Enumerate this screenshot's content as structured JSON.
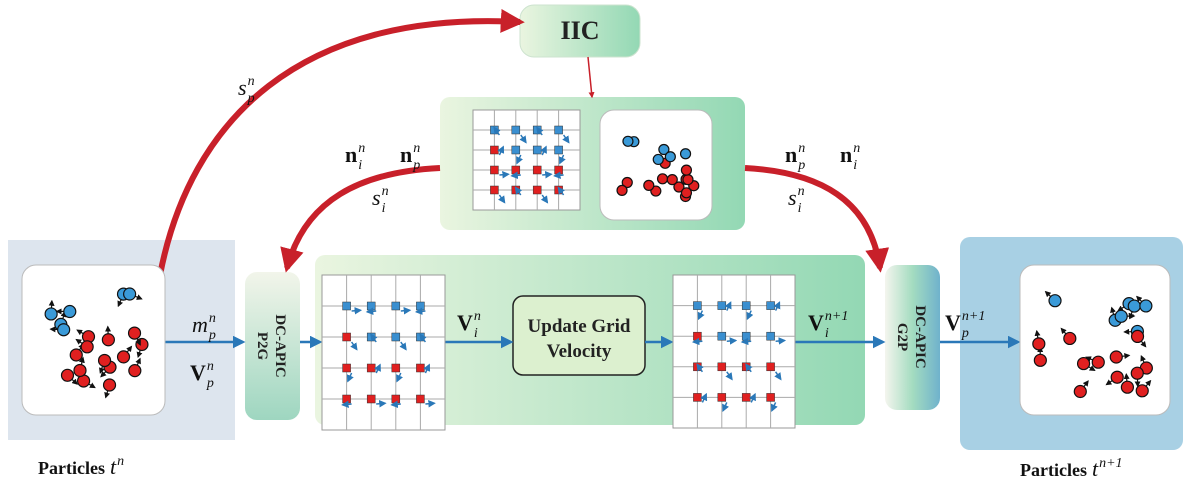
{
  "nodes": {
    "iic": "IIC",
    "p2g": [
      "DC-APIC",
      "P2G"
    ],
    "update": [
      "Update Grid",
      "Velocity"
    ],
    "g2p": [
      "DC-APIC",
      "G2P"
    ]
  },
  "captions": [
    {
      "text": "Particles",
      "var": "t",
      "sup": "n"
    },
    {
      "text": "Particles",
      "var": "t",
      "sup": "n+1"
    }
  ],
  "labels": [
    {
      "base": "s",
      "sub": "p",
      "sup": "n",
      "bold": false
    },
    {
      "base": "n",
      "sub": "i",
      "sup": "n",
      "bold": true
    },
    {
      "base": "n",
      "sub": "p",
      "sup": "n",
      "bold": true
    },
    {
      "base": "s",
      "sub": "i",
      "sup": "n",
      "bold": false
    },
    {
      "base": "m",
      "sub": "p",
      "sup": "n",
      "bold": false
    },
    {
      "base": "V",
      "sub": "p",
      "sup": "n",
      "bold": true
    },
    {
      "base": "V",
      "sub": "i",
      "sup": "n",
      "bold": true
    },
    {
      "base": "V",
      "sub": "i",
      "sup": "n+1",
      "bold": true
    },
    {
      "base": "n",
      "sub": "p",
      "sup": "n",
      "bold": true
    },
    {
      "base": "n",
      "sub": "i",
      "sup": "n",
      "bold": true
    },
    {
      "base": "s",
      "sub": "i",
      "sup": "n",
      "bold": false
    },
    {
      "base": "V",
      "sub": "p",
      "sup": "n+1",
      "bold": true
    }
  ]
}
